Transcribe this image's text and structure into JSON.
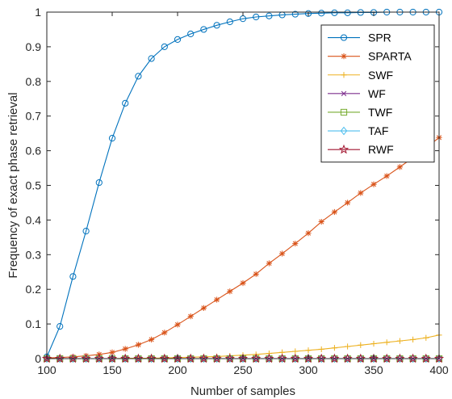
{
  "chart_data": {
    "type": "line",
    "xlabel": "Number of samples",
    "ylabel": "Frequency of exact phase retrieval",
    "xlim": [
      100,
      400
    ],
    "ylim": [
      0,
      1
    ],
    "xticks": [
      "100",
      "150",
      "200",
      "250",
      "300",
      "350",
      "400"
    ],
    "yticks": [
      "0",
      "0.1",
      "0.2",
      "0.3",
      "0.4",
      "0.5",
      "0.6",
      "0.7",
      "0.8",
      "0.9",
      "1"
    ],
    "grid": false,
    "legend_position": "top-right",
    "x": [
      100,
      110,
      120,
      130,
      140,
      150,
      160,
      170,
      180,
      190,
      200,
      210,
      220,
      230,
      240,
      250,
      260,
      270,
      280,
      290,
      300,
      310,
      320,
      330,
      340,
      350,
      360,
      370,
      380,
      390,
      400
    ],
    "series": [
      {
        "name": "SPR",
        "color": "#0072BD",
        "marker": "circle",
        "values": [
          0.005,
          0.093,
          0.237,
          0.368,
          0.508,
          0.636,
          0.737,
          0.815,
          0.866,
          0.9,
          0.921,
          0.937,
          0.95,
          0.962,
          0.972,
          0.981,
          0.986,
          0.989,
          0.992,
          0.994,
          0.996,
          0.997,
          0.998,
          0.998,
          0.999,
          0.999,
          1.0,
          1.0,
          1.0,
          1.0,
          1.0
        ]
      },
      {
        "name": "SPARTA",
        "color": "#D95319",
        "marker": "asterisk",
        "values": [
          0.002,
          0.003,
          0.005,
          0.008,
          0.012,
          0.018,
          0.028,
          0.04,
          0.055,
          0.075,
          0.098,
          0.122,
          0.146,
          0.17,
          0.194,
          0.218,
          0.244,
          0.275,
          0.303,
          0.332,
          0.362,
          0.395,
          0.423,
          0.45,
          0.478,
          0.503,
          0.527,
          0.553,
          0.58,
          0.608,
          0.638
        ]
      },
      {
        "name": "SWF",
        "color": "#EDB120",
        "marker": "plus",
        "values": [
          0,
          0,
          0,
          0,
          0,
          0,
          0.001,
          0.001,
          0.001,
          0.002,
          0.003,
          0.004,
          0.005,
          0.006,
          0.008,
          0.01,
          0.012,
          0.015,
          0.018,
          0.021,
          0.024,
          0.027,
          0.031,
          0.035,
          0.039,
          0.043,
          0.047,
          0.051,
          0.055,
          0.06,
          0.068
        ]
      },
      {
        "name": "WF",
        "color": "#7E2F8E",
        "marker": "cross",
        "values": [
          0,
          0,
          0,
          0,
          0,
          0,
          0,
          0,
          0,
          0,
          0,
          0,
          0,
          0,
          0,
          0,
          0,
          0,
          0,
          0,
          0,
          0,
          0,
          0,
          0,
          0,
          0,
          0,
          0,
          0,
          0
        ]
      },
      {
        "name": "TWF",
        "color": "#77AC30",
        "marker": "square",
        "values": [
          0,
          0,
          0,
          0,
          0,
          0,
          0,
          0,
          0,
          0,
          0,
          0,
          0,
          0,
          0,
          0,
          0,
          0,
          0,
          0,
          0,
          0,
          0,
          0,
          0,
          0,
          0,
          0,
          0,
          0,
          0
        ]
      },
      {
        "name": "TAF",
        "color": "#4DBEEE",
        "marker": "diamond",
        "values": [
          0,
          0,
          0,
          0,
          0,
          0,
          0,
          0,
          0,
          0,
          0,
          0,
          0,
          0,
          0,
          0,
          0,
          0,
          0,
          0,
          0,
          0,
          0,
          0,
          0,
          0,
          0,
          0,
          0,
          0,
          0
        ]
      },
      {
        "name": "RWF",
        "color": "#A2142F",
        "marker": "pentagram",
        "values": [
          0,
          0,
          0,
          0,
          0,
          0,
          0,
          0,
          0,
          0,
          0,
          0,
          0,
          0,
          0,
          0,
          0,
          0,
          0,
          0,
          0,
          0,
          0,
          0,
          0,
          0,
          0,
          0,
          0,
          0,
          0
        ]
      }
    ]
  }
}
